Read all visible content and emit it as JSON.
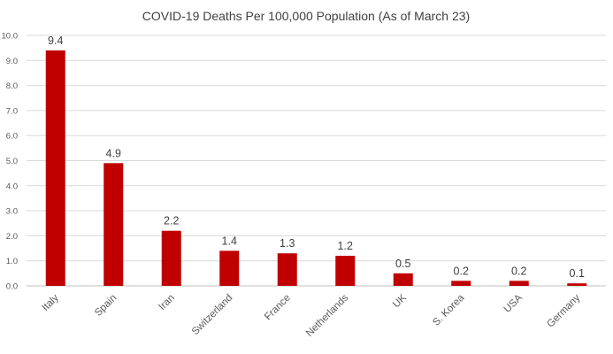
{
  "chart_data": {
    "type": "bar",
    "title": "COVID-19 Deaths Per 100,000 Population (As of March 23)",
    "xlabel": "",
    "ylabel": "",
    "categories": [
      "Italy",
      "Spain",
      "Iran",
      "Switzerland",
      "France",
      "Netherlands",
      "UK",
      "S. Korea",
      "USA",
      "Germany"
    ],
    "values": [
      9.4,
      4.9,
      2.2,
      1.4,
      1.3,
      1.2,
      0.5,
      0.2,
      0.2,
      0.1
    ],
    "data_labels": [
      "9.4",
      "4.9",
      "2.2",
      "1.4",
      "1.3",
      "1.2",
      "0.5",
      "0.2",
      "0.2",
      "0.1"
    ],
    "ylim": [
      0,
      10
    ],
    "yticks": [
      0,
      1,
      2,
      3,
      4,
      5,
      6,
      7,
      8,
      9,
      10
    ],
    "ytick_labels": [
      "0.0",
      "1.0",
      "2.0",
      "3.0",
      "4.0",
      "5.0",
      "6.0",
      "7.0",
      "8.0",
      "9.0",
      "10.0"
    ],
    "grid": true,
    "legend": "none",
    "bar_color": "#c00000"
  }
}
